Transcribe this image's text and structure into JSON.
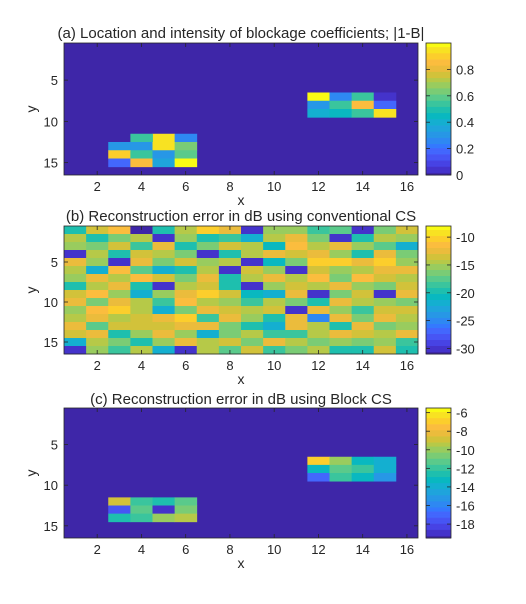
{
  "colormap": [
    "#3e26a8",
    "#4433cb",
    "#4743e4",
    "#4755f4",
    "#4367fd",
    "#3479fe",
    "#2e88f2",
    "#2797e6",
    "#1fa4dc",
    "#14afd0",
    "#09b8c0",
    "#1ebfae",
    "#3ac59d",
    "#5aca8b",
    "#7acc75",
    "#99cc5e",
    "#b6c948",
    "#d2c23a",
    "#ebbc3c",
    "#fbbd3e",
    "#fcce2c",
    "#f8e222",
    "#f9fb14"
  ],
  "chart_data": [
    {
      "type": "heatmap",
      "title": "(a) Location and intensity of blockage coefficients; |1-B|",
      "xlabel": "x",
      "ylabel": "y",
      "x_range": [
        1,
        16
      ],
      "y_range": [
        1,
        16
      ],
      "y_reversed": true,
      "xticks": [
        "2",
        "4",
        "6",
        "8",
        "10",
        "12",
        "14",
        "16"
      ],
      "yticks": [
        "5",
        "10",
        "15"
      ],
      "clim": [
        0,
        1
      ],
      "colorbar_ticks": [
        "0",
        "0.2",
        "0.4",
        "0.6",
        "0.8"
      ],
      "background_value": 0,
      "cells": [
        [
          12,
          7,
          1.0
        ],
        [
          13,
          7,
          0.25
        ],
        [
          14,
          7,
          0.55
        ],
        [
          15,
          7,
          0.05
        ],
        [
          12,
          8,
          0.3
        ],
        [
          13,
          8,
          0.55
        ],
        [
          14,
          8,
          0.85
        ],
        [
          15,
          8,
          0.2
        ],
        [
          12,
          9,
          0.4
        ],
        [
          13,
          9,
          0.45
        ],
        [
          14,
          9,
          0.55
        ],
        [
          15,
          9,
          0.95
        ],
        [
          5,
          12,
          0.95
        ],
        [
          4,
          12,
          0.55
        ],
        [
          6,
          12,
          0.25
        ],
        [
          3,
          13,
          0.3
        ],
        [
          4,
          13,
          0.3
        ],
        [
          5,
          13,
          0.95
        ],
        [
          6,
          13,
          0.65
        ],
        [
          3,
          14,
          0.9
        ],
        [
          4,
          14,
          0.55
        ],
        [
          5,
          14,
          0.3
        ],
        [
          6,
          14,
          0.6
        ],
        [
          3,
          15,
          0.2
        ],
        [
          4,
          15,
          0.85
        ],
        [
          5,
          15,
          0.35
        ],
        [
          6,
          15,
          1.0
        ]
      ]
    },
    {
      "type": "heatmap",
      "title": "(b) Reconstruction error in dB using conventional CS",
      "xlabel": "x",
      "ylabel": "y",
      "x_range": [
        1,
        16
      ],
      "y_range": [
        1,
        16
      ],
      "y_reversed": true,
      "xticks": [
        "2",
        "4",
        "6",
        "8",
        "10",
        "12",
        "14",
        "16"
      ],
      "yticks": [
        "5",
        "10",
        "15"
      ],
      "clim": [
        -31,
        -8
      ],
      "colorbar_ticks": [
        "-10",
        "-15",
        "-20",
        "-25",
        "-30"
      ],
      "grid_values": [
        [
          -20,
          -13,
          -11,
          -31,
          -20,
          -14,
          -10,
          -12,
          -30,
          -15,
          -15,
          -18,
          -17,
          -30,
          -16,
          -13
        ],
        [
          -14,
          -20,
          -16,
          -14,
          -30,
          -15,
          -20,
          -18,
          -22,
          -14,
          -12,
          -16,
          -30,
          -20,
          -14,
          -15
        ],
        [
          -15,
          -16,
          -13,
          -18,
          -12,
          -20,
          -16,
          -13,
          -14,
          -21,
          -11,
          -14,
          -12,
          -15,
          -17,
          -22
        ],
        [
          -30,
          -14,
          -20,
          -13,
          -14,
          -16,
          -30,
          -19,
          -14,
          -12,
          -13,
          -12,
          -15,
          -20,
          -12,
          -16
        ],
        [
          -12,
          -15,
          -30,
          -12,
          -16,
          -13,
          -15,
          -14,
          -30,
          -21,
          -16,
          -10,
          -10,
          -12,
          -10,
          -15
        ],
        [
          -14,
          -22,
          -11,
          -17,
          -22,
          -19,
          -14,
          -30,
          -13,
          -15,
          -30,
          -13,
          -15,
          -14,
          -12,
          -12
        ],
        [
          -15,
          -12,
          -14,
          -11,
          -13,
          -16,
          -12,
          -20,
          -14,
          -12,
          -14,
          -11,
          -16,
          -11,
          -13,
          -14
        ],
        [
          -20,
          -14,
          -12,
          -20,
          -30,
          -14,
          -13,
          -20,
          -30,
          -15,
          -13,
          -14,
          -12,
          -15,
          -16,
          -13
        ],
        [
          -13,
          -11,
          -15,
          -22,
          -15,
          -12,
          -10,
          -13,
          -21,
          -22,
          -12,
          -30,
          -16,
          -13,
          -30,
          -12
        ],
        [
          -12,
          -16,
          -12,
          -14,
          -18,
          -11,
          -14,
          -15,
          -18,
          -14,
          -16,
          -20,
          -12,
          -14,
          -15,
          -16
        ],
        [
          -15,
          -11,
          -10,
          -14,
          -22,
          -16,
          -12,
          -13,
          -14,
          -13,
          -30,
          -12,
          -15,
          -18,
          -13,
          -13
        ],
        [
          -14,
          -12,
          -14,
          -13,
          -12,
          -10,
          -18,
          -12,
          -15,
          -20,
          -12,
          -25,
          -12,
          -16,
          -12,
          -14
        ],
        [
          -12,
          -17,
          -13,
          -13,
          -13,
          -12,
          -12,
          -16,
          -20,
          -22,
          -12,
          -14,
          -20,
          -12,
          -16,
          -15
        ],
        [
          -13,
          -12,
          -20,
          -15,
          -12,
          -15,
          -22,
          -16,
          -14,
          -18,
          -18,
          -14,
          -12,
          -13,
          -14,
          -12
        ],
        [
          -22,
          -14,
          -16,
          -20,
          -15,
          -12,
          -14,
          -13,
          -16,
          -12,
          -14,
          -16,
          -15,
          -16,
          -15,
          -18
        ],
        [
          -30,
          -15,
          -18,
          -14,
          -22,
          -30,
          -14,
          -17,
          -13,
          -18,
          -16,
          -14,
          -20,
          -19,
          -13,
          -20
        ]
      ]
    },
    {
      "type": "heatmap",
      "title": "(c) Reconstruction error in dB using Block CS",
      "xlabel": "x",
      "ylabel": "y",
      "x_range": [
        1,
        16
      ],
      "y_range": [
        1,
        16
      ],
      "y_reversed": true,
      "xticks": [
        "2",
        "4",
        "6",
        "8",
        "10",
        "12",
        "14",
        "16"
      ],
      "yticks": [
        "5",
        "10",
        "15"
      ],
      "clim": [
        -19.5,
        -5.5
      ],
      "colorbar_ticks": [
        "-6",
        "-8",
        "-10",
        "-12",
        "-14",
        "-16",
        "-18"
      ],
      "background_value": -19.5,
      "cells": [
        [
          12,
          7,
          -6.5
        ],
        [
          13,
          7,
          -10
        ],
        [
          14,
          7,
          -13
        ],
        [
          15,
          7,
          -14
        ],
        [
          12,
          8,
          -13
        ],
        [
          13,
          8,
          -11
        ],
        [
          14,
          8,
          -12
        ],
        [
          15,
          8,
          -14
        ],
        [
          12,
          9,
          -17
        ],
        [
          13,
          9,
          -12
        ],
        [
          14,
          9,
          -13
        ],
        [
          15,
          9,
          -15
        ],
        [
          3,
          12,
          -9
        ],
        [
          4,
          12,
          -12
        ],
        [
          5,
          12,
          -12.5
        ],
        [
          6,
          12,
          -11
        ],
        [
          3,
          13,
          -17.5
        ],
        [
          4,
          13,
          -11
        ],
        [
          5,
          13,
          -19
        ],
        [
          6,
          13,
          -10.5
        ],
        [
          3,
          14,
          -12.5
        ],
        [
          4,
          14,
          -12
        ],
        [
          5,
          14,
          -10
        ],
        [
          6,
          14,
          -9.5
        ]
      ]
    }
  ]
}
